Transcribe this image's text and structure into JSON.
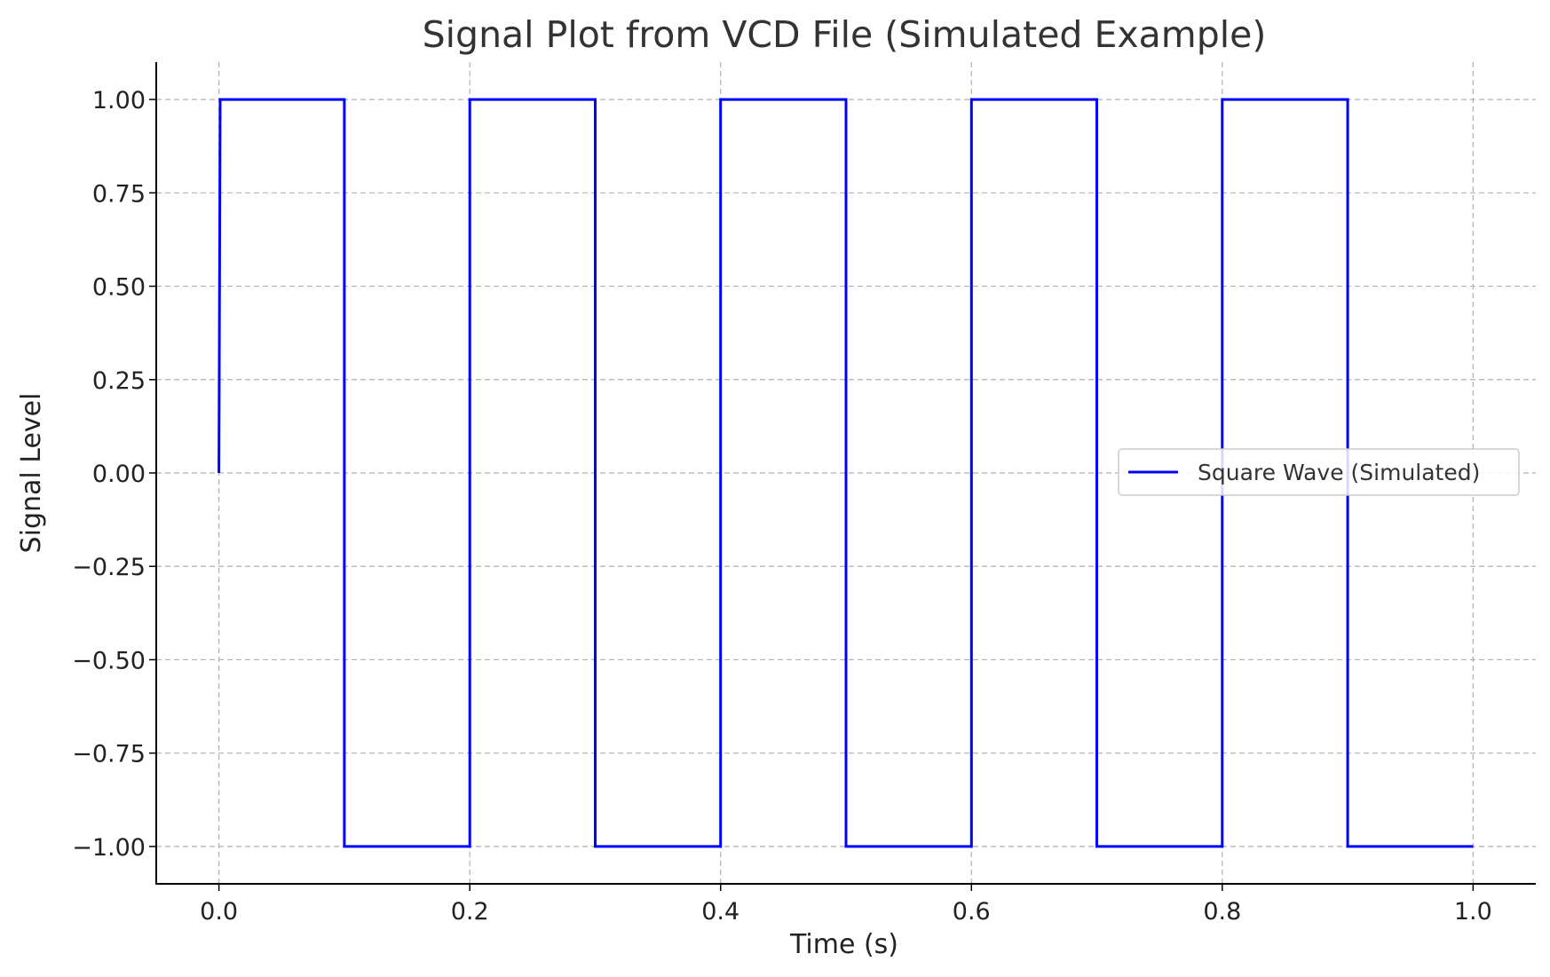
{
  "chart_data": {
    "type": "line",
    "title": "Signal Plot from VCD File (Simulated Example)",
    "xlabel": "Time (s)",
    "ylabel": "Signal Level",
    "xlim": [
      -0.05,
      1.05
    ],
    "ylim": [
      -1.1,
      1.1
    ],
    "x_ticks": [
      "0.0",
      "0.2",
      "0.4",
      "0.6",
      "0.8",
      "1.0"
    ],
    "y_ticks": [
      "1.00",
      "0.75",
      "0.50",
      "0.25",
      "0.00",
      "−0.25",
      "−0.50",
      "−0.75",
      "−1.00"
    ],
    "grid": true,
    "legend_position": "center-right",
    "series": [
      {
        "name": "Square Wave (Simulated)",
        "color": "#0000ff",
        "x": [
          0.0,
          0.001,
          0.1,
          0.1,
          0.2,
          0.2,
          0.3,
          0.3,
          0.4,
          0.4,
          0.5,
          0.5,
          0.6,
          0.6,
          0.7,
          0.7,
          0.8,
          0.8,
          0.9,
          0.9,
          1.0
        ],
        "y": [
          0,
          1,
          1,
          -1,
          -1,
          1,
          1,
          -1,
          -1,
          1,
          1,
          -1,
          -1,
          1,
          1,
          -1,
          -1,
          1,
          1,
          -1,
          -1
        ]
      }
    ]
  }
}
